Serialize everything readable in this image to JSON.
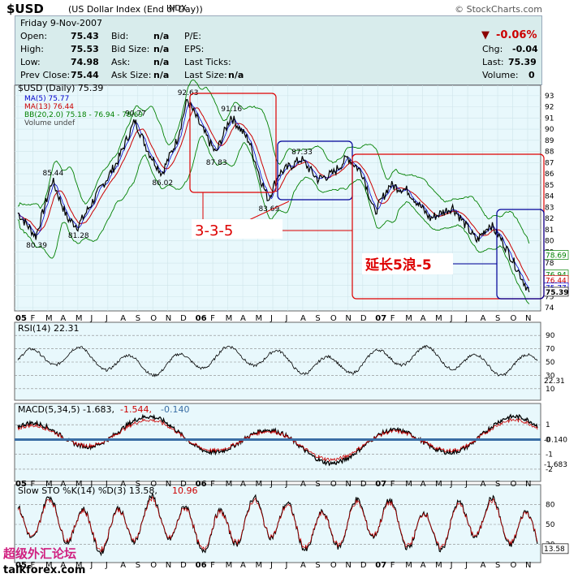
{
  "header": {
    "symbol": "$USD",
    "name": "(US Dollar Index (End of Day))",
    "exchange": "INDX",
    "brand": "© StockCharts.com",
    "date": "Friday 9-Nov-2007"
  },
  "quote": {
    "open_label": "Open:",
    "open": "75.43",
    "high_label": "High:",
    "high": "75.53",
    "low_label": "Low:",
    "low": "74.98",
    "prev_label": "Prev Close:",
    "prev": "75.44",
    "bid_label": "Bid:",
    "bid": "n/a",
    "bidsize_label": "Bid Size:",
    "bidsize": "n/a",
    "ask_label": "Ask:",
    "ask": "n/a",
    "asksize_label": "Ask Size:",
    "asksize": "n/a",
    "pe_label": "P/E:",
    "eps_label": "EPS:",
    "lastticks_label": "Last Ticks:",
    "lastsize_label": "Last Size:",
    "lastsize": "n/a",
    "pct_change": "-0.06%",
    "chg_label": "Chg:",
    "chg": "-0.04",
    "last_label": "Last:",
    "last": "75.39",
    "volume_label": "Volume:",
    "volume": "0"
  },
  "legend": {
    "price": "$USD (Daily) 75.39",
    "ma5": "MA(5) 75.77",
    "ma13": "MA(13) 76.44",
    "bb": "BB(20,2.0) 75.18 - 76.94 - 78.69",
    "volume": "Volume undef"
  },
  "annotations": {
    "wave1": "3-3-5",
    "wave2": "延长5浪-5"
  },
  "panels": {
    "rsi_label": "RSI(14) 22.31",
    "macd_label_a": "MACD(5,34,5) -1.683,",
    "macd_label_b": "-1.544,",
    "macd_label_c": "-0.140",
    "sto_label_a": "Slow STO %K(14) %D(3) 13.58,",
    "sto_label_b": "10.96"
  },
  "watermark": {
    "cn": "超级外汇论坛",
    "url": "talkforex.com"
  },
  "colors": {
    "panel_bg": "#e8f8fc",
    "price": "#000000",
    "ma5": "#0000cc",
    "ma13": "#cc0000",
    "bb": "#008000",
    "box_red": "#dd0000",
    "box_blue": "#000099",
    "macd_hist": "#3a6ea5"
  },
  "chart_data": {
    "type": "line",
    "y_ticks": [
      74,
      75,
      76,
      77,
      78,
      79,
      80,
      81,
      82,
      83,
      84,
      85,
      86,
      87,
      88,
      89,
      90,
      91,
      92,
      93
    ],
    "ylim": [
      74,
      93.5
    ],
    "x_ticks": [
      "05",
      "F",
      "M",
      "A",
      "M",
      "J",
      "J",
      "A",
      "S",
      "O",
      "N",
      "D",
      "06",
      "F",
      "M",
      "A",
      "M",
      "J",
      "J",
      "A",
      "S",
      "O",
      "N",
      "D",
      "07",
      "F",
      "M",
      "A",
      "M",
      "J",
      "J",
      "A",
      "S",
      "O",
      "N"
    ],
    "price_points": [
      {
        "t": 0.0,
        "v": 82.5
      },
      {
        "t": 1.2,
        "v": 80.39
      },
      {
        "t": 2.3,
        "v": 85.44
      },
      {
        "t": 3.3,
        "v": 82.0
      },
      {
        "t": 4.0,
        "v": 81.28
      },
      {
        "t": 5.2,
        "v": 84.0
      },
      {
        "t": 6.6,
        "v": 87.0
      },
      {
        "t": 7.8,
        "v": 90.77
      },
      {
        "t": 8.7,
        "v": 88.0
      },
      {
        "t": 9.6,
        "v": 86.02
      },
      {
        "t": 10.6,
        "v": 89.0
      },
      {
        "t": 11.3,
        "v": 92.63
      },
      {
        "t": 12.3,
        "v": 90.0
      },
      {
        "t": 13.2,
        "v": 87.83
      },
      {
        "t": 14.2,
        "v": 91.16
      },
      {
        "t": 15.4,
        "v": 89.0
      },
      {
        "t": 16.2,
        "v": 85.5
      },
      {
        "t": 16.7,
        "v": 83.69
      },
      {
        "t": 17.4,
        "v": 86.0
      },
      {
        "t": 18.9,
        "v": 87.33
      },
      {
        "t": 20.0,
        "v": 85.5
      },
      {
        "t": 21.0,
        "v": 86.0
      },
      {
        "t": 22.0,
        "v": 87.5
      },
      {
        "t": 23.0,
        "v": 86.0
      },
      {
        "t": 23.8,
        "v": 82.5
      },
      {
        "t": 24.8,
        "v": 85.0
      },
      {
        "t": 26.0,
        "v": 84.5
      },
      {
        "t": 27.5,
        "v": 82.0
      },
      {
        "t": 29.0,
        "v": 83.0
      },
      {
        "t": 30.6,
        "v": 80.0
      },
      {
        "t": 31.5,
        "v": 81.5
      },
      {
        "t": 32.3,
        "v": 80.0
      },
      {
        "t": 33.3,
        "v": 77.5
      },
      {
        "t": 34.1,
        "v": 75.39
      }
    ],
    "annotated_values": [
      "80.39",
      "85.44",
      "81.28",
      "90.77",
      "86.02",
      "92.63",
      "87.83",
      "91.16",
      "83.69",
      "87.33"
    ],
    "right_labels": [
      "78.69",
      "76.94",
      "76.44",
      "75.77",
      "75.39"
    ],
    "rsi": {
      "ticks": [
        10,
        30,
        50,
        70,
        90
      ],
      "last": "22.31"
    },
    "macd": {
      "ticks": [
        -2,
        -1,
        0,
        1
      ],
      "last_hist": "-0.140",
      "last": "-1.683"
    },
    "sto": {
      "ticks": [
        20,
        50,
        80
      ],
      "last": "13.58"
    }
  }
}
